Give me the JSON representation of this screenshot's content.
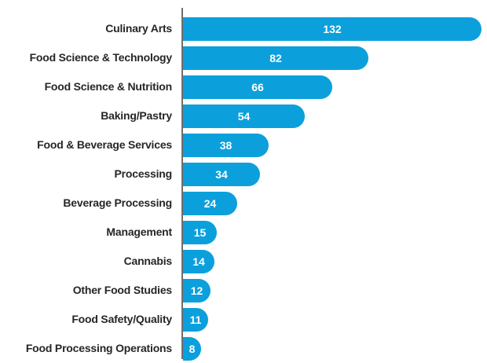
{
  "chart_data": {
    "type": "bar",
    "orientation": "horizontal",
    "title": "",
    "xlabel": "",
    "ylabel": "",
    "categories": [
      "Culinary Arts",
      "Food Science & Technology",
      "Food Science & Nutrition",
      "Baking/Pastry",
      "Food & Beverage Services",
      "Processing",
      "Beverage Processing",
      "Management",
      "Cannabis",
      "Other Food Studies",
      "Food Safety/Quality",
      "Food Processing Operations"
    ],
    "values": [
      132,
      82,
      66,
      54,
      38,
      34,
      24,
      15,
      14,
      12,
      11,
      8
    ],
    "xlim": [
      0,
      132
    ],
    "grid": false,
    "legend": null,
    "value_labels_shown": true,
    "colors": {
      "bar": "#0ba0dc",
      "value_label": "#ffffff",
      "category_label": "#272528",
      "axis_line": "#6d6e71",
      "background": "#ffffff"
    }
  }
}
